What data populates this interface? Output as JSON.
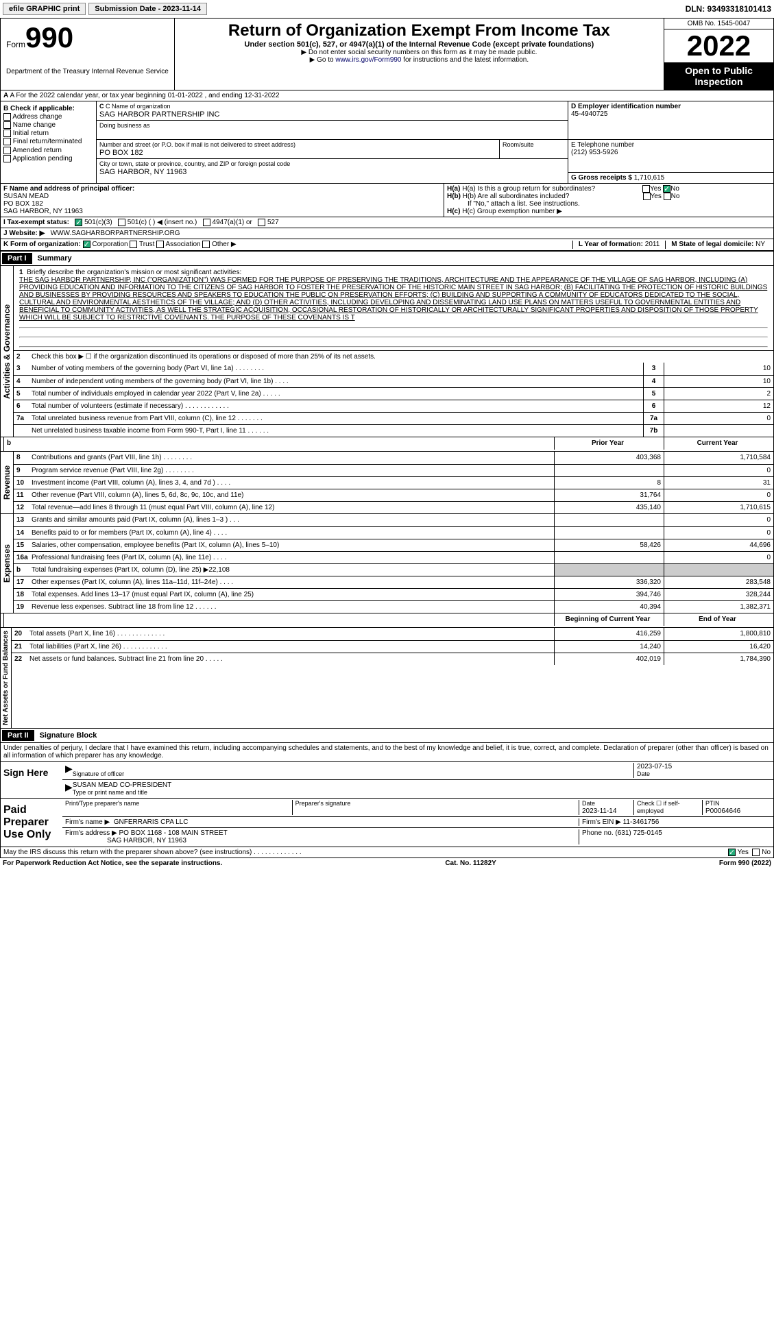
{
  "top": {
    "efile": "efile GRAPHIC print",
    "subdate_lbl": "Submission Date - 2023-11-14",
    "dln": "DLN: 93493318101413"
  },
  "header": {
    "form_prefix": "Form",
    "form_num": "990",
    "dept": "Department of the Treasury\nInternal Revenue Service",
    "title": "Return of Organization Exempt From Income Tax",
    "sub": "Under section 501(c), 527, or 4947(a)(1) of the Internal Revenue Code (except private foundations)",
    "note1": "▶ Do not enter social security numbers on this form as it may be made public.",
    "note2_pre": "▶ Go to ",
    "note2_link": "www.irs.gov/Form990",
    "note2_post": " for instructions and the latest information.",
    "omb": "OMB No. 1545-0047",
    "year": "2022",
    "inspect": "Open to Public Inspection"
  },
  "rowA": "A For the 2022 calendar year, or tax year beginning 01-01-2022    , and ending 12-31-2022",
  "colB": {
    "hdr": "B Check if applicable:",
    "items": [
      "Address change",
      "Name change",
      "Initial return",
      "Final return/terminated",
      "Amended return",
      "Application pending"
    ]
  },
  "colC": {
    "name_lbl": "C Name of organization",
    "name": "SAG HARBOR PARTNERSHIP INC",
    "dba_lbl": "Doing business as",
    "addr_lbl": "Number and street (or P.O. box if mail is not delivered to street address)",
    "addr": "PO BOX 182",
    "room_lbl": "Room/suite",
    "city_lbl": "City or town, state or province, country, and ZIP or foreign postal code",
    "city": "SAG HARBOR, NY  11963"
  },
  "colDE": {
    "d_lbl": "D Employer identification number",
    "d_val": "45-4940725",
    "e_lbl": "E Telephone number",
    "e_val": "(212) 953-5926",
    "g_lbl": "G Gross receipts $",
    "g_val": "1,710,615"
  },
  "rowF": {
    "f_lbl": "F  Name and address of principal officer:",
    "f_name": "SUSAN MEAD",
    "f_addr1": "PO BOX 182",
    "f_addr2": "SAG HARBOR, NY  11963",
    "ha_lbl": "H(a)  Is this a group return for subordinates?",
    "hb_lbl": "H(b)  Are all subordinates included?",
    "hb_note": "If \"No,\" attach a list. See instructions.",
    "hc_lbl": "H(c)  Group exemption number ▶"
  },
  "rowI": {
    "lbl": "I    Tax-exempt status:",
    "opts": [
      "501(c)(3)",
      "501(c) (  ) ◀ (insert no.)",
      "4947(a)(1) or",
      "527"
    ]
  },
  "rowJ": {
    "lbl": "J   Website: ▶",
    "val": "WWW.SAGHARBORPARTNERSHIP.ORG"
  },
  "rowK": {
    "lbl": "K Form of organization:",
    "opts": [
      "Corporation",
      "Trust",
      "Association",
      "Other ▶"
    ],
    "l_lbl": "L Year of formation:",
    "l_val": "2011",
    "m_lbl": "M State of legal domicile:",
    "m_val": "NY"
  },
  "part1": {
    "hdr": "Part I",
    "title": "Summary",
    "side1": "Activities & Governance",
    "l1_lbl": "Briefly describe the organization's mission or most significant activities:",
    "l1_txt": "THE SAG HARBOR PARTNERSHIP, INC (\"ORGANIZATION\") WAS FORMED FOR THE PURPOSE OF PRESERVING THE TRADITIONS, ARCHITECTURE AND THE APPEARANCE OF THE VILLAGE OF SAG HARBOR, INCLUDING (A) PROVIDING EDUCATION AND INFORMATION TO THE CITIZENS OF SAG HARBOR TO FOSTER THE PRESERVATION OF THE HISTORIC MAIN STREET IN SAG HARBOR; (B) FACILITATING THE PROTECTION OF HISTORIC BUILDINGS AND BUSINESSES BY PROVIDING RESOURCES AND SPEAKERS TO EDUCATION THE PUBLIC ON PRESERVATION EFFORTS; (C) BUILDING AND SUPPORTING A COMMUNITY OF EDUCATORS DEDICATED TO THE SOCIAL, CULTURAL AND ENVIRONMENTAL AESTHETICS OF THE VILLAGE; AND (D) OTHER ACTIVITIES, INCLUDING DEVELOPING AND DISSEMINATING LAND USE PLANS ON MATTERS USEFUL TO GOVERNMENTAL ENTITIES AND BENEFICIAL TO COMMUNITY ACTIVITIES, AS WELL THE STRATEGIC ACQUISITION, OCCASIONAL RESTORATION OF HISTORICALLY OR ARCHITECTURALLY SIGNIFICANT PROPERTIES AND DISPOSITION OF THOSE PROPERTY WHICH WILL BE SUBJECT TO RESTRICTIVE COVENANTS. THE PURPOSE OF THESE COVENANTS IS T",
    "l2": "Check this box ▶ ☐ if the organization discontinued its operations or disposed of more than 25% of its net assets.",
    "rows_ag": [
      {
        "n": "3",
        "t": "Number of voting members of the governing body (Part VI, line 1a)  .   .   .   .   .   .   .   .",
        "b": "3",
        "v": "10"
      },
      {
        "n": "4",
        "t": "Number of independent voting members of the governing body (Part VI, line 1b)    .   .   .   .",
        "b": "4",
        "v": "10"
      },
      {
        "n": "5",
        "t": "Total number of individuals employed in calendar year 2022 (Part V, line 2a)  .   .   .   .   .",
        "b": "5",
        "v": "2"
      },
      {
        "n": "6",
        "t": "Total number of volunteers (estimate if necessary)  .   .   .   .   .   .   .   .   .   .   .   .",
        "b": "6",
        "v": "12"
      },
      {
        "n": "7a",
        "t": "Total unrelated business revenue from Part VIII, column (C), line 12   .   .   .   .   .   .   .",
        "b": "7a",
        "v": "0"
      },
      {
        "n": "",
        "t": "Net unrelated business taxable income from Form 990-T, Part I, line 11   .   .   .   .   .   .",
        "b": "7b",
        "v": ""
      }
    ],
    "side2": "Revenue",
    "hdr_prior": "Prior Year",
    "hdr_curr": "Current Year",
    "rows_rev": [
      {
        "n": "8",
        "t": "Contributions and grants (Part VIII, line 1h)   .   .   .   .   .   .   .   .",
        "p": "403,368",
        "c": "1,710,584"
      },
      {
        "n": "9",
        "t": "Program service revenue (Part VIII, line 2g)   .   .   .   .   .   .   .   .",
        "p": "",
        "c": "0"
      },
      {
        "n": "10",
        "t": "Investment income (Part VIII, column (A), lines 3, 4, and 7d )   .   .   .   .",
        "p": "8",
        "c": "31"
      },
      {
        "n": "11",
        "t": "Other revenue (Part VIII, column (A), lines 5, 6d, 8c, 9c, 10c, and 11e)",
        "p": "31,764",
        "c": "0"
      },
      {
        "n": "12",
        "t": "Total revenue—add lines 8 through 11 (must equal Part VIII, column (A), line 12)",
        "p": "435,140",
        "c": "1,710,615"
      }
    ],
    "side3": "Expenses",
    "rows_exp": [
      {
        "n": "13",
        "t": "Grants and similar amounts paid (Part IX, column (A), lines 1–3 )  .   .   .",
        "p": "",
        "c": "0"
      },
      {
        "n": "14",
        "t": "Benefits paid to or for members (Part IX, column (A), line 4)  .   .   .   .",
        "p": "",
        "c": "0"
      },
      {
        "n": "15",
        "t": "Salaries, other compensation, employee benefits (Part IX, column (A), lines 5–10)",
        "p": "58,426",
        "c": "44,696"
      },
      {
        "n": "16a",
        "t": "Professional fundraising fees (Part IX, column (A), line 11e)   .   .   .   .",
        "p": "",
        "c": "0"
      },
      {
        "n": "b",
        "t": "Total fundraising expenses (Part IX, column (D), line 25) ▶22,108",
        "p": "__shaded__",
        "c": "__shaded__"
      },
      {
        "n": "17",
        "t": "Other expenses (Part IX, column (A), lines 11a–11d, 11f–24e)   .   .   .   .",
        "p": "336,320",
        "c": "283,548"
      },
      {
        "n": "18",
        "t": "Total expenses. Add lines 13–17 (must equal Part IX, column (A), line 25)",
        "p": "394,746",
        "c": "328,244"
      },
      {
        "n": "19",
        "t": "Revenue less expenses. Subtract line 18 from line 12   .   .   .   .   .   .",
        "p": "40,394",
        "c": "1,382,371"
      }
    ],
    "side4": "Net Assets or Fund Balances",
    "hdr_beg": "Beginning of Current Year",
    "hdr_end": "End of Year",
    "rows_na": [
      {
        "n": "20",
        "t": "Total assets (Part X, line 16)  .   .   .   .   .   .   .   .   .   .   .   .   .",
        "p": "416,259",
        "c": "1,800,810"
      },
      {
        "n": "21",
        "t": "Total liabilities (Part X, line 26)  .   .   .   .   .   .   .   .   .   .   .   .",
        "p": "14,240",
        "c": "16,420"
      },
      {
        "n": "22",
        "t": "Net assets or fund balances. Subtract line 21 from line 20  .   .   .   .   .",
        "p": "402,019",
        "c": "1,784,390"
      }
    ]
  },
  "part2": {
    "hdr": "Part II",
    "title": "Signature Block",
    "penalty": "Under penalties of perjury, I declare that I have examined this return, including accompanying schedules and statements, and to the best of my knowledge and belief, it is true, correct, and complete. Declaration of preparer (other than officer) is based on all information of which preparer has any knowledge.",
    "sign_lbl": "Sign Here",
    "sig_officer": "Signature of officer",
    "sig_date": "2023-07-15",
    "sig_date_lbl": "Date",
    "sig_name": "SUSAN MEAD  CO-PRESIDENT",
    "sig_name_lbl": "Type or print name and title",
    "paid_lbl": "Paid Preparer Use Only",
    "prep_name_lbl": "Print/Type preparer's name",
    "prep_sig_lbl": "Preparer's signature",
    "prep_date_lbl": "Date",
    "prep_date": "2023-11-14",
    "prep_chk_lbl": "Check ☐ if self-employed",
    "ptin_lbl": "PTIN",
    "ptin": "P00064646",
    "firm_name_lbl": "Firm's name    ▶",
    "firm_name": "GNFERRARIS CPA LLC",
    "firm_ein_lbl": "Firm's EIN ▶",
    "firm_ein": "11-3461756",
    "firm_addr_lbl": "Firm's address ▶",
    "firm_addr1": "PO BOX 1168 - 108 MAIN STREET",
    "firm_addr2": "SAG HARBOR, NY  11963",
    "firm_phone_lbl": "Phone no.",
    "firm_phone": "(631) 725-0145",
    "discuss": "May the IRS discuss this return with the preparer shown above? (see instructions)   .   .   .   .   .   .   .   .   .   .   .   .   ."
  },
  "footer": {
    "left": "For Paperwork Reduction Act Notice, see the separate instructions.",
    "mid": "Cat. No. 11282Y",
    "right": "Form 990 (2022)"
  }
}
